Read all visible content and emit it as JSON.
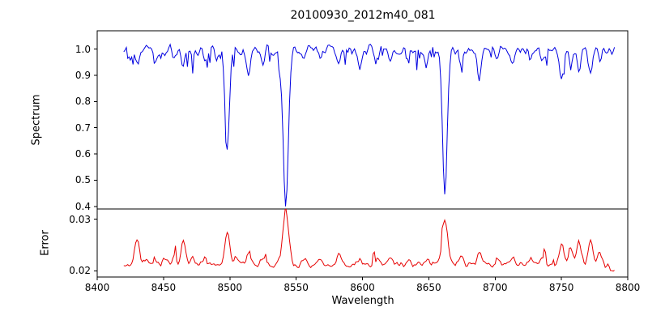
{
  "title": "20100930_2012m40_081",
  "colors": {
    "spectrum_line": "#0000e0",
    "error_line": "#e60000",
    "axis": "#000000",
    "background": "#ffffff",
    "text": "#000000"
  },
  "chart_data": {
    "type": "line",
    "title": "20100930_2012m40_081",
    "xlabel": "Wavelength",
    "grid": false,
    "legend": "none",
    "xlim": [
      8400,
      8800
    ],
    "xticks": [
      8400,
      8450,
      8500,
      8550,
      8600,
      8650,
      8700,
      8750,
      8800
    ],
    "xtick_labels": [
      "8400",
      "8450",
      "8500",
      "8550",
      "8600",
      "8650",
      "8700",
      "8750",
      "8800"
    ],
    "x_data_range": [
      8420,
      8790
    ],
    "panels": [
      {
        "name": "spectrum",
        "ylabel": "Spectrum",
        "ylim": [
          0.39,
          1.07
        ],
        "yticks": [
          0.4,
          0.5,
          0.6,
          0.7,
          0.8,
          0.9,
          1.0
        ],
        "ytick_labels": [
          "0.4",
          "0.5",
          "0.6",
          "0.7",
          "0.8",
          "0.9",
          "1.0"
        ],
        "continuum": 0.998,
        "color_key": "spectrum_line"
      },
      {
        "name": "error",
        "ylabel": "Error",
        "ylim": [
          0.0188,
          0.032
        ],
        "yticks": [
          0.02,
          0.03
        ],
        "ytick_labels": [
          "0.02",
          "0.03"
        ],
        "base": 0.0212,
        "color_key": "error_line"
      }
    ],
    "absorption_lines_columns": [
      "center_wavelength",
      "depth",
      "sigma"
    ],
    "absorption_lines": [
      [
        8425,
        0.045,
        1.2
      ],
      [
        8430,
        0.055,
        1.4
      ],
      [
        8444,
        0.035,
        1.2
      ],
      [
        8451,
        0.04,
        1.2
      ],
      [
        8458,
        0.035,
        1.1
      ],
      [
        8465,
        0.055,
        1.4
      ],
      [
        8472,
        0.035,
        1.1
      ],
      [
        8481,
        0.04,
        1.2
      ],
      [
        8490,
        0.035,
        1.1
      ],
      [
        8498,
        0.375,
        1.6
      ],
      [
        8514,
        0.09,
        1.3
      ],
      [
        8525,
        0.04,
        1.2
      ],
      [
        8532,
        0.035,
        1.1
      ],
      [
        8542.1,
        0.585,
        2.0
      ],
      [
        8556,
        0.04,
        1.2
      ],
      [
        8568,
        0.035,
        1.1
      ],
      [
        8582,
        0.05,
        1.2
      ],
      [
        8598,
        0.08,
        1.4
      ],
      [
        8611,
        0.04,
        1.1
      ],
      [
        8621,
        0.05,
        1.2
      ],
      [
        8634,
        0.035,
        1.1
      ],
      [
        8648,
        0.045,
        1.2
      ],
      [
        8662.1,
        0.545,
        1.8
      ],
      [
        8674,
        0.05,
        1.2
      ],
      [
        8688,
        0.12,
        1.6
      ],
      [
        8702,
        0.04,
        1.1
      ],
      [
        8713,
        0.06,
        1.3
      ],
      [
        8727,
        0.04,
        1.1
      ],
      [
        8736,
        0.05,
        1.2
      ],
      [
        8750,
        0.11,
        1.7
      ],
      [
        8757,
        0.06,
        1.2
      ],
      [
        8763,
        0.08,
        1.3
      ],
      [
        8772,
        0.09,
        1.5
      ],
      [
        8779,
        0.05,
        1.2
      ]
    ],
    "error_peaks_columns": [
      "center_wavelength",
      "height",
      "sigma"
    ],
    "error_peaks": [
      [
        8430,
        0.005,
        1.8
      ],
      [
        8437,
        0.0012,
        1.5
      ],
      [
        8444,
        0.001,
        1.5
      ],
      [
        8451,
        0.0016,
        1.5
      ],
      [
        8458,
        0.0014,
        1.5
      ],
      [
        8465,
        0.0046,
        1.8
      ],
      [
        8472,
        0.0012,
        1.5
      ],
      [
        8481,
        0.0014,
        1.5
      ],
      [
        8498,
        0.006,
        2.0
      ],
      [
        8505,
        0.0014,
        1.5
      ],
      [
        8514,
        0.0018,
        1.5
      ],
      [
        8525,
        0.001,
        1.5
      ],
      [
        8542.1,
        0.01,
        2.2
      ],
      [
        8556,
        0.0014,
        1.5
      ],
      [
        8568,
        0.001,
        1.5
      ],
      [
        8582,
        0.002,
        1.6
      ],
      [
        8598,
        0.0014,
        1.5
      ],
      [
        8611,
        0.001,
        1.5
      ],
      [
        8621,
        0.0012,
        1.5
      ],
      [
        8634,
        0.0008,
        1.5
      ],
      [
        8648,
        0.001,
        1.5
      ],
      [
        8662.1,
        0.0092,
        2.1
      ],
      [
        8674,
        0.0016,
        1.5
      ],
      [
        8688,
        0.0022,
        1.6
      ],
      [
        8702,
        0.001,
        1.5
      ],
      [
        8713,
        0.0014,
        1.5
      ],
      [
        8727,
        0.001,
        1.5
      ],
      [
        8736,
        0.0016,
        1.5
      ],
      [
        8750,
        0.004,
        1.8
      ],
      [
        8757,
        0.0032,
        1.6
      ],
      [
        8763,
        0.0045,
        1.7
      ],
      [
        8772,
        0.0048,
        1.8
      ],
      [
        8779,
        0.0022,
        1.5
      ]
    ],
    "noise": {
      "seed": 7,
      "spectrum_amplitude": 0.045,
      "spectrum_spike": 0.065,
      "error_amplitude": 0.0014,
      "error_spike": 0.002,
      "error_end_taper_start": 8782,
      "error_end_taper_slope": 0.00012
    }
  }
}
